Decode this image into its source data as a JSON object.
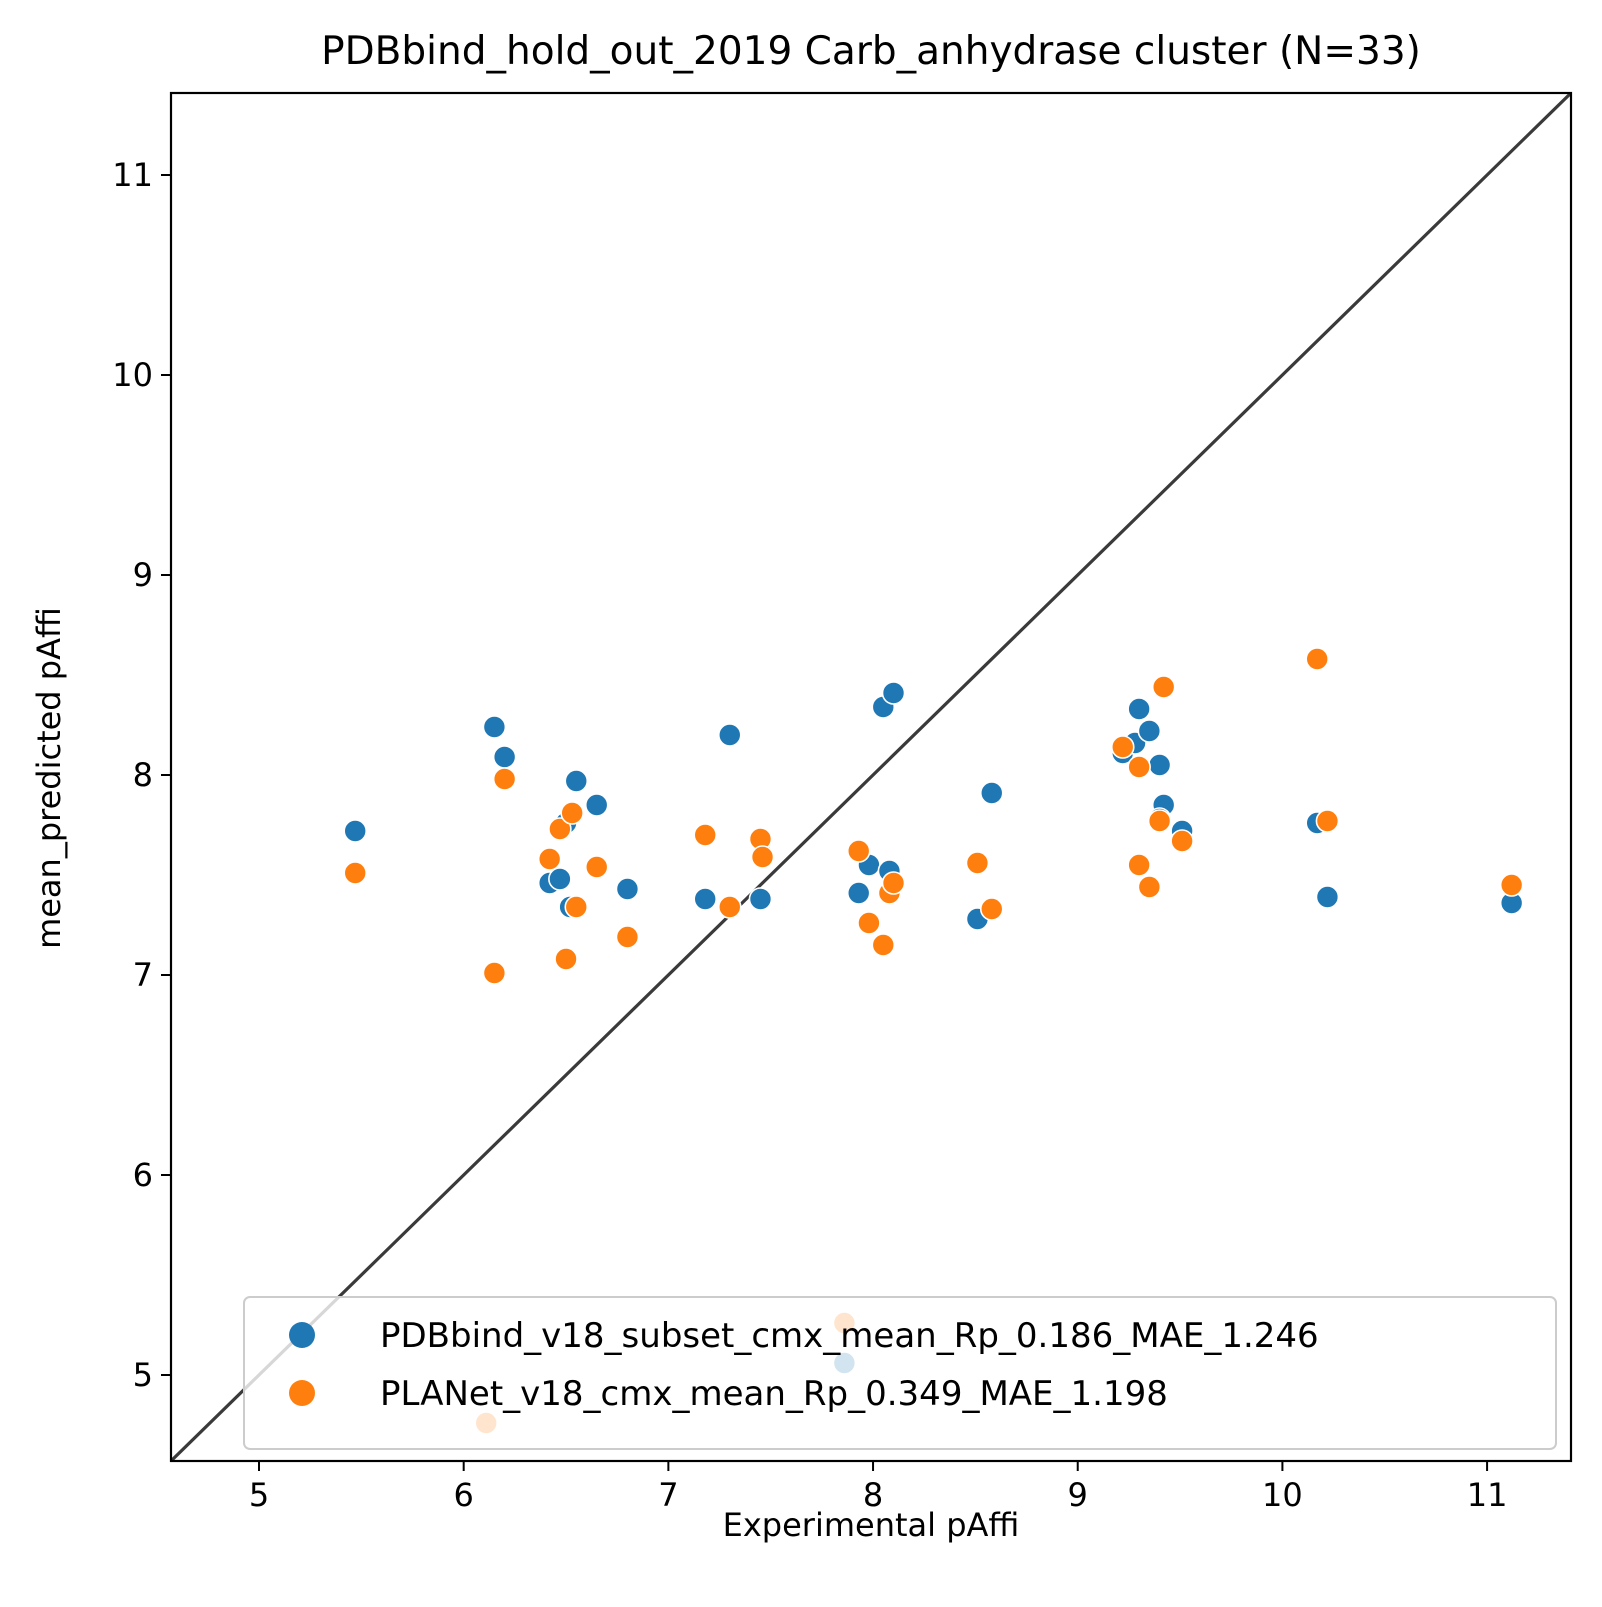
{
  "chart_data": {
    "type": "scatter",
    "title": "PDBbind_hold_out_2019 Carb_anhydrase cluster (N=33)",
    "xlabel": "Experimental pAffi",
    "ylabel": "mean_predicted pAffi",
    "xlim": [
      4.57,
      11.41
    ],
    "ylim": [
      4.57,
      11.41
    ],
    "xticks": [
      "5",
      "6",
      "7",
      "8",
      "9",
      "10",
      "11"
    ],
    "yticks": [
      "5",
      "6",
      "7",
      "8",
      "9",
      "10",
      "11"
    ],
    "identity_line": true,
    "grid": false,
    "legend_position": "lower-right",
    "colors": {
      "blue": "#1f77b4",
      "orange": "#ff7f0e",
      "line": "#3a3a3a"
    },
    "series": [
      {
        "name": "PDBbind_v18_subset_cmx_mean_Rp_0.186_MAE_1.246",
        "color": "#1f77b4",
        "points": [
          [
            5.47,
            7.72
          ],
          [
            6.15,
            8.24
          ],
          [
            6.2,
            8.09
          ],
          [
            6.42,
            7.46
          ],
          [
            6.47,
            7.48
          ],
          [
            6.5,
            7.76
          ],
          [
            6.52,
            7.34
          ],
          [
            6.55,
            7.97
          ],
          [
            6.65,
            7.85
          ],
          [
            6.8,
            7.43
          ],
          [
            7.18,
            7.38
          ],
          [
            7.3,
            8.2
          ],
          [
            7.45,
            7.38
          ],
          [
            7.46,
            7.6
          ],
          [
            7.86,
            5.06
          ],
          [
            7.93,
            7.41
          ],
          [
            7.98,
            7.55
          ],
          [
            8.05,
            8.34
          ],
          [
            8.08,
            7.52
          ],
          [
            8.1,
            8.41
          ],
          [
            8.51,
            7.28
          ],
          [
            8.58,
            7.91
          ],
          [
            9.22,
            8.11
          ],
          [
            9.28,
            8.16
          ],
          [
            9.3,
            8.33
          ],
          [
            9.35,
            8.22
          ],
          [
            9.4,
            8.05
          ],
          [
            9.42,
            7.85
          ],
          [
            9.4,
            7.78
          ],
          [
            9.51,
            7.72
          ],
          [
            10.17,
            7.76
          ],
          [
            10.22,
            7.39
          ],
          [
            11.12,
            7.36
          ]
        ]
      },
      {
        "name": "PLANet_v18_cmx_mean_Rp_0.349_MAE_1.198",
        "color": "#ff7f0e",
        "points": [
          [
            5.47,
            7.51
          ],
          [
            6.11,
            4.76
          ],
          [
            6.15,
            7.01
          ],
          [
            6.2,
            7.98
          ],
          [
            6.42,
            7.58
          ],
          [
            6.47,
            7.73
          ],
          [
            6.5,
            7.08
          ],
          [
            6.53,
            7.81
          ],
          [
            6.55,
            7.34
          ],
          [
            6.65,
            7.54
          ],
          [
            6.8,
            7.19
          ],
          [
            7.18,
            7.7
          ],
          [
            7.3,
            7.34
          ],
          [
            7.45,
            7.68
          ],
          [
            7.46,
            7.59
          ],
          [
            7.86,
            5.26
          ],
          [
            7.93,
            7.62
          ],
          [
            7.98,
            7.26
          ],
          [
            8.05,
            7.15
          ],
          [
            8.08,
            7.41
          ],
          [
            8.1,
            7.46
          ],
          [
            8.51,
            7.56
          ],
          [
            8.58,
            7.33
          ],
          [
            9.22,
            8.14
          ],
          [
            9.3,
            8.04
          ],
          [
            9.3,
            7.55
          ],
          [
            9.35,
            7.44
          ],
          [
            9.4,
            7.77
          ],
          [
            9.42,
            8.44
          ],
          [
            9.51,
            7.67
          ],
          [
            10.17,
            8.58
          ],
          [
            10.22,
            7.77
          ],
          [
            11.12,
            7.45
          ]
        ]
      }
    ]
  }
}
